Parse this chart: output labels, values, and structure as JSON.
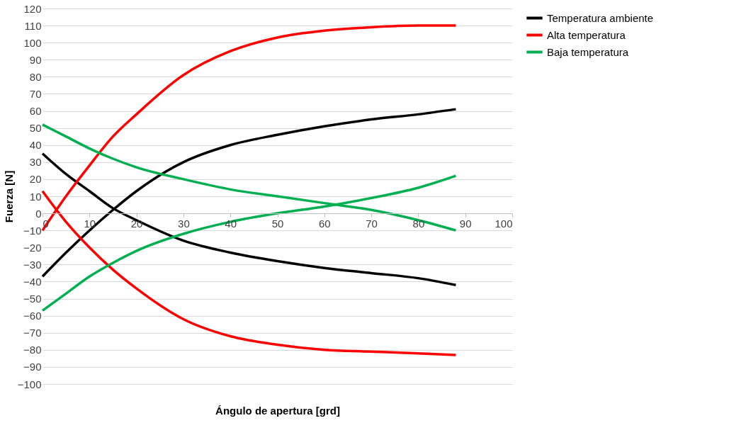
{
  "chart_data": {
    "type": "line",
    "xlabel": "Ángulo de apertura [grd]",
    "ylabel": "Fuerza [N]",
    "x": [
      0,
      5,
      10,
      15,
      20,
      30,
      40,
      50,
      60,
      70,
      80,
      88
    ],
    "xlim": [
      0,
      100
    ],
    "xticks": [
      0,
      10,
      20,
      30,
      40,
      50,
      60,
      70,
      80,
      90,
      100
    ],
    "ylim": [
      -100,
      120
    ],
    "yticks": [
      -100,
      -90,
      -80,
      -70,
      -60,
      -50,
      -40,
      -30,
      -20,
      -10,
      0,
      10,
      20,
      30,
      40,
      50,
      60,
      70,
      80,
      90,
      100,
      110,
      120
    ],
    "grid": "y",
    "legend": "right",
    "marker": "none",
    "line_style": "solid",
    "series": [
      {
        "name": "Temperatura ambiente",
        "color": "#000000",
        "values": [
          -37,
          -23,
          -10,
          2,
          13,
          30,
          40,
          46,
          51,
          55,
          58,
          61
        ]
      },
      {
        "color": "#000000",
        "values": [
          35,
          23,
          13,
          3,
          -4,
          -16,
          -23,
          -28,
          -32,
          -35,
          -38,
          -42
        ]
      },
      {
        "name": "Alta temperatura",
        "color": "#ff0000",
        "values": [
          -10,
          10,
          28,
          45,
          58,
          81,
          95,
          103,
          107,
          109,
          110,
          110
        ]
      },
      {
        "color": "#ff0000",
        "values": [
          13,
          -5,
          -20,
          -33,
          -44,
          -62,
          -72,
          -77,
          -80,
          -81,
          -82,
          -83
        ]
      },
      {
        "name": "Baja temperatura",
        "color": "#00b050",
        "values": [
          52,
          45,
          38,
          32,
          27,
          20,
          14,
          10,
          6,
          2,
          -4,
          -10
        ]
      },
      {
        "color": "#00b050",
        "values": [
          -57,
          -47,
          -37,
          -29,
          -22,
          -12,
          -5,
          0,
          4,
          9,
          15,
          22
        ]
      }
    ]
  }
}
